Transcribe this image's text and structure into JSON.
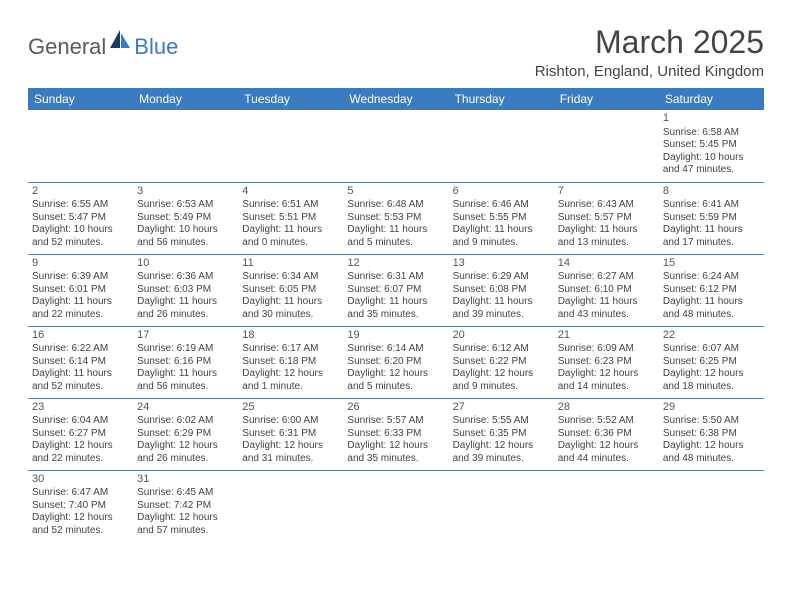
{
  "logo": {
    "text1": "General",
    "text2": "Blue"
  },
  "title": "March 2025",
  "subtitle": "Rishton, England, United Kingdom",
  "colors": {
    "header_bg": "#3b7bbf",
    "header_text": "#ffffff",
    "cell_border": "#3b7bbf",
    "body_text": "#444444",
    "logo_gray": "#5a5a5a",
    "logo_blue": "#3b7bbf",
    "page_bg": "#ffffff"
  },
  "fonts": {
    "title_size": 32,
    "subtitle_size": 15,
    "header_size": 12,
    "daynum_size": 11,
    "info_size": 10
  },
  "weekdays": [
    "Sunday",
    "Monday",
    "Tuesday",
    "Wednesday",
    "Thursday",
    "Friday",
    "Saturday"
  ],
  "days": [
    {
      "n": "1",
      "sunrise": "Sunrise: 6:58 AM",
      "sunset": "Sunset: 5:45 PM",
      "daylight": "Daylight: 10 hours and 47 minutes."
    },
    {
      "n": "2",
      "sunrise": "Sunrise: 6:55 AM",
      "sunset": "Sunset: 5:47 PM",
      "daylight": "Daylight: 10 hours and 52 minutes."
    },
    {
      "n": "3",
      "sunrise": "Sunrise: 6:53 AM",
      "sunset": "Sunset: 5:49 PM",
      "daylight": "Daylight: 10 hours and 56 minutes."
    },
    {
      "n": "4",
      "sunrise": "Sunrise: 6:51 AM",
      "sunset": "Sunset: 5:51 PM",
      "daylight": "Daylight: 11 hours and 0 minutes."
    },
    {
      "n": "5",
      "sunrise": "Sunrise: 6:48 AM",
      "sunset": "Sunset: 5:53 PM",
      "daylight": "Daylight: 11 hours and 5 minutes."
    },
    {
      "n": "6",
      "sunrise": "Sunrise: 6:46 AM",
      "sunset": "Sunset: 5:55 PM",
      "daylight": "Daylight: 11 hours and 9 minutes."
    },
    {
      "n": "7",
      "sunrise": "Sunrise: 6:43 AM",
      "sunset": "Sunset: 5:57 PM",
      "daylight": "Daylight: 11 hours and 13 minutes."
    },
    {
      "n": "8",
      "sunrise": "Sunrise: 6:41 AM",
      "sunset": "Sunset: 5:59 PM",
      "daylight": "Daylight: 11 hours and 17 minutes."
    },
    {
      "n": "9",
      "sunrise": "Sunrise: 6:39 AM",
      "sunset": "Sunset: 6:01 PM",
      "daylight": "Daylight: 11 hours and 22 minutes."
    },
    {
      "n": "10",
      "sunrise": "Sunrise: 6:36 AM",
      "sunset": "Sunset: 6:03 PM",
      "daylight": "Daylight: 11 hours and 26 minutes."
    },
    {
      "n": "11",
      "sunrise": "Sunrise: 6:34 AM",
      "sunset": "Sunset: 6:05 PM",
      "daylight": "Daylight: 11 hours and 30 minutes."
    },
    {
      "n": "12",
      "sunrise": "Sunrise: 6:31 AM",
      "sunset": "Sunset: 6:07 PM",
      "daylight": "Daylight: 11 hours and 35 minutes."
    },
    {
      "n": "13",
      "sunrise": "Sunrise: 6:29 AM",
      "sunset": "Sunset: 6:08 PM",
      "daylight": "Daylight: 11 hours and 39 minutes."
    },
    {
      "n": "14",
      "sunrise": "Sunrise: 6:27 AM",
      "sunset": "Sunset: 6:10 PM",
      "daylight": "Daylight: 11 hours and 43 minutes."
    },
    {
      "n": "15",
      "sunrise": "Sunrise: 6:24 AM",
      "sunset": "Sunset: 6:12 PM",
      "daylight": "Daylight: 11 hours and 48 minutes."
    },
    {
      "n": "16",
      "sunrise": "Sunrise: 6:22 AM",
      "sunset": "Sunset: 6:14 PM",
      "daylight": "Daylight: 11 hours and 52 minutes."
    },
    {
      "n": "17",
      "sunrise": "Sunrise: 6:19 AM",
      "sunset": "Sunset: 6:16 PM",
      "daylight": "Daylight: 11 hours and 56 minutes."
    },
    {
      "n": "18",
      "sunrise": "Sunrise: 6:17 AM",
      "sunset": "Sunset: 6:18 PM",
      "daylight": "Daylight: 12 hours and 1 minute."
    },
    {
      "n": "19",
      "sunrise": "Sunrise: 6:14 AM",
      "sunset": "Sunset: 6:20 PM",
      "daylight": "Daylight: 12 hours and 5 minutes."
    },
    {
      "n": "20",
      "sunrise": "Sunrise: 6:12 AM",
      "sunset": "Sunset: 6:22 PM",
      "daylight": "Daylight: 12 hours and 9 minutes."
    },
    {
      "n": "21",
      "sunrise": "Sunrise: 6:09 AM",
      "sunset": "Sunset: 6:23 PM",
      "daylight": "Daylight: 12 hours and 14 minutes."
    },
    {
      "n": "22",
      "sunrise": "Sunrise: 6:07 AM",
      "sunset": "Sunset: 6:25 PM",
      "daylight": "Daylight: 12 hours and 18 minutes."
    },
    {
      "n": "23",
      "sunrise": "Sunrise: 6:04 AM",
      "sunset": "Sunset: 6:27 PM",
      "daylight": "Daylight: 12 hours and 22 minutes."
    },
    {
      "n": "24",
      "sunrise": "Sunrise: 6:02 AM",
      "sunset": "Sunset: 6:29 PM",
      "daylight": "Daylight: 12 hours and 26 minutes."
    },
    {
      "n": "25",
      "sunrise": "Sunrise: 6:00 AM",
      "sunset": "Sunset: 6:31 PM",
      "daylight": "Daylight: 12 hours and 31 minutes."
    },
    {
      "n": "26",
      "sunrise": "Sunrise: 5:57 AM",
      "sunset": "Sunset: 6:33 PM",
      "daylight": "Daylight: 12 hours and 35 minutes."
    },
    {
      "n": "27",
      "sunrise": "Sunrise: 5:55 AM",
      "sunset": "Sunset: 6:35 PM",
      "daylight": "Daylight: 12 hours and 39 minutes."
    },
    {
      "n": "28",
      "sunrise": "Sunrise: 5:52 AM",
      "sunset": "Sunset: 6:36 PM",
      "daylight": "Daylight: 12 hours and 44 minutes."
    },
    {
      "n": "29",
      "sunrise": "Sunrise: 5:50 AM",
      "sunset": "Sunset: 6:38 PM",
      "daylight": "Daylight: 12 hours and 48 minutes."
    },
    {
      "n": "30",
      "sunrise": "Sunrise: 6:47 AM",
      "sunset": "Sunset: 7:40 PM",
      "daylight": "Daylight: 12 hours and 52 minutes."
    },
    {
      "n": "31",
      "sunrise": "Sunrise: 6:45 AM",
      "sunset": "Sunset: 7:42 PM",
      "daylight": "Daylight: 12 hours and 57 minutes."
    }
  ],
  "layout": {
    "first_day_column": 6,
    "total_days": 31,
    "columns": 7
  }
}
